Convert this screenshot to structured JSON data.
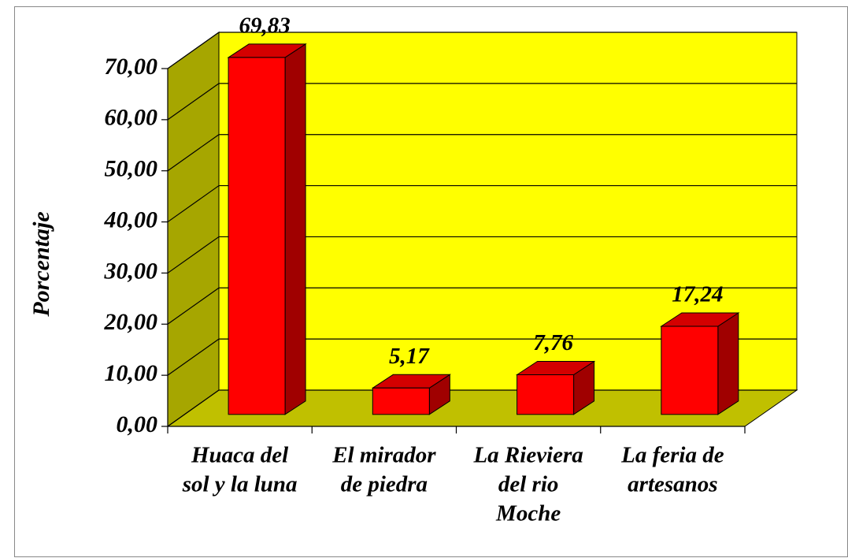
{
  "chart_data": {
    "type": "bar3d",
    "y_label": "Porcentaje",
    "categories": [
      [
        "Huaca del",
        "sol y la luna"
      ],
      [
        "El mirador",
        "de piedra"
      ],
      [
        "La Rieviera",
        "del rio",
        "Moche"
      ],
      [
        "La feria de",
        "artesanos"
      ]
    ],
    "values": [
      69.83,
      5.17,
      7.76,
      17.24
    ],
    "value_labels": [
      "69,83",
      "5,17",
      "7,76",
      "17,24"
    ],
    "color": "#ff0000",
    "ylim": [
      0,
      70
    ],
    "yticks": [
      {
        "value": 0,
        "label": "0,00"
      },
      {
        "value": 10,
        "label": "10,00"
      },
      {
        "value": 20,
        "label": "20,00"
      },
      {
        "value": 30,
        "label": "30,00"
      },
      {
        "value": 40,
        "label": "40,00"
      },
      {
        "value": 50,
        "label": "50,00"
      },
      {
        "value": 60,
        "label": "60,00"
      },
      {
        "value": 70,
        "label": "70,00"
      }
    ],
    "grid": true
  }
}
